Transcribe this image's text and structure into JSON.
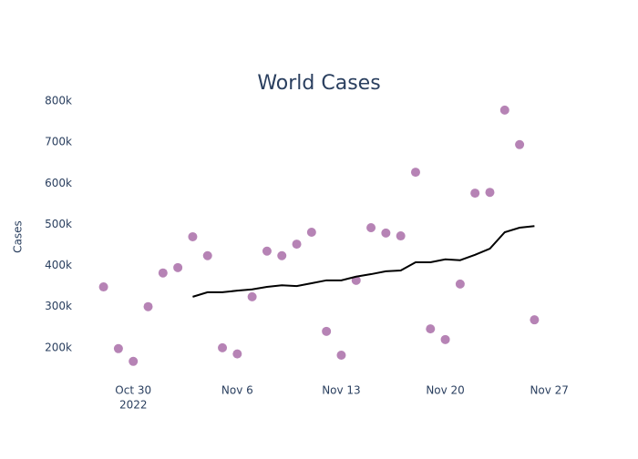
{
  "chart_data": {
    "type": "scatter",
    "title": "World Cases",
    "y_label": "Cases",
    "x": [
      "2022-10-28",
      "2022-10-29",
      "2022-10-30",
      "2022-10-31",
      "2022-11-01",
      "2022-11-02",
      "2022-11-03",
      "2022-11-04",
      "2022-11-05",
      "2022-11-06",
      "2022-11-07",
      "2022-11-08",
      "2022-11-09",
      "2022-11-10",
      "2022-11-11",
      "2022-11-12",
      "2022-11-13",
      "2022-11-14",
      "2022-11-15",
      "2022-11-16",
      "2022-11-17",
      "2022-11-18",
      "2022-11-19",
      "2022-11-20",
      "2022-11-21",
      "2022-11-22",
      "2022-11-23",
      "2022-11-24",
      "2022-11-25",
      "2022-11-26"
    ],
    "series": [
      {
        "mode": "markers",
        "color": "#b683b5",
        "values": [
          348000,
          198000,
          167000,
          300000,
          382000,
          395000,
          470000,
          424000,
          200000,
          185000,
          324000,
          435000,
          424000,
          452000,
          481000,
          240000,
          182000,
          364000,
          492000,
          479000,
          472000,
          627000,
          246000,
          220000,
          355000,
          576000,
          578000,
          778000,
          694000,
          268000
        ]
      },
      {
        "mode": "lines",
        "color": "#000000",
        "values": [
          null,
          null,
          null,
          null,
          null,
          null,
          324000,
          335000,
          335000,
          339000,
          342000,
          348000,
          352000,
          350000,
          357000,
          364000,
          364000,
          373000,
          379000,
          386000,
          388000,
          408000,
          408000,
          415000,
          413000,
          426000,
          441000,
          481000,
          492000,
          496000
        ]
      }
    ],
    "xlim": [
      "2022-10-26",
      "2022-11-28"
    ],
    "xticks": [
      {
        "value": "2022-10-30",
        "label": "Oct 30"
      },
      {
        "value": "2022-11-06",
        "label": "Nov 6"
      },
      {
        "value": "2022-11-13",
        "label": "Nov 13"
      },
      {
        "value": "2022-11-20",
        "label": "Nov 20"
      },
      {
        "value": "2022-11-27",
        "label": "Nov 27"
      }
    ],
    "x_year": "2022",
    "ylim": [
      120000,
      830000
    ],
    "yticks": [
      {
        "value": 200000,
        "label": "200k"
      },
      {
        "value": 300000,
        "label": "300k"
      },
      {
        "value": 400000,
        "label": "400k"
      },
      {
        "value": 500000,
        "label": "500k"
      },
      {
        "value": 600000,
        "label": "600k"
      },
      {
        "value": 700000,
        "label": "700k"
      },
      {
        "value": 800000,
        "label": "800k"
      }
    ],
    "grid": false
  }
}
